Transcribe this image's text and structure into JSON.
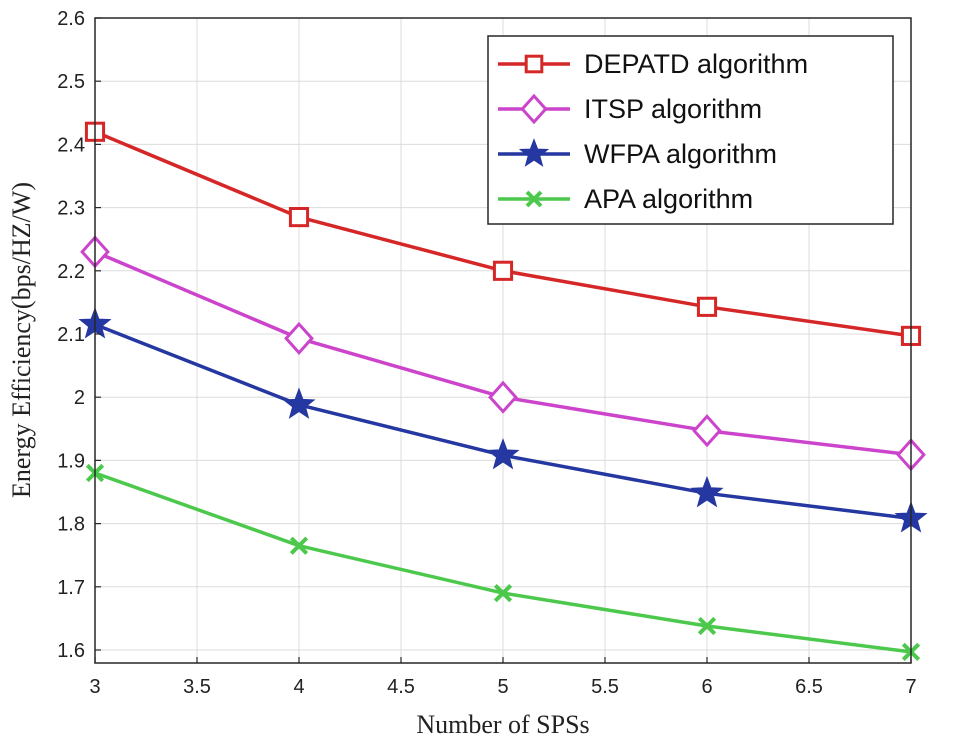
{
  "chart_data": {
    "type": "line",
    "xlabel": "Number of SPSs",
    "ylabel": "Energy Efficiency(bps/HZ/W)",
    "xlim": [
      3,
      7
    ],
    "ylim": [
      1.58,
      2.6
    ],
    "xticks": [
      "3",
      "3.5",
      "4",
      "4.5",
      "5",
      "5.5",
      "6",
      "6.5",
      "7"
    ],
    "yticks": [
      "1.6",
      "1.7",
      "1.8",
      "1.9",
      "2",
      "2.1",
      "2.2",
      "2.3",
      "2.4",
      "2.5",
      "2.6"
    ],
    "grid": true,
    "legend_position": "top-right",
    "x": [
      3,
      4,
      5,
      6,
      7
    ],
    "series": [
      {
        "name": "DEPATD algorithm",
        "values": [
          2.42,
          2.285,
          2.2,
          2.143,
          2.097
        ],
        "color": "#d62728",
        "marker": "square"
      },
      {
        "name": "ITSP algorithm",
        "values": [
          2.23,
          2.093,
          2.0,
          1.947,
          1.909
        ],
        "color": "#cc44cc",
        "marker": "diamond"
      },
      {
        "name": "WFPA algorithm",
        "values": [
          2.115,
          1.988,
          1.908,
          1.848,
          1.808
        ],
        "color": "#2537a0",
        "marker": "star"
      },
      {
        "name": "APA algorithm",
        "values": [
          1.88,
          1.765,
          1.69,
          1.638,
          1.597
        ],
        "color": "#4cc94c",
        "marker": "x"
      }
    ]
  }
}
